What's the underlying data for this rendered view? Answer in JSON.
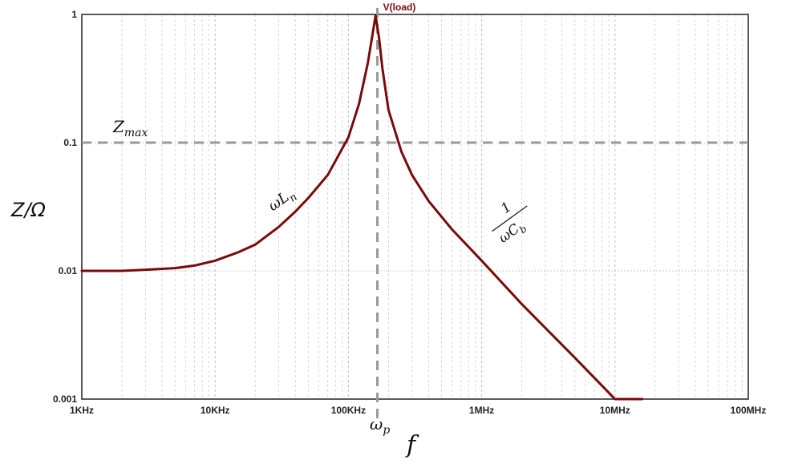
{
  "chart_data": {
    "type": "line",
    "title": "V(load)",
    "xlabel": "f",
    "ylabel": "Z/Ω",
    "x_scale": "log",
    "y_scale": "log",
    "xlim": [
      1000,
      100000000
    ],
    "ylim": [
      0.001,
      1
    ],
    "x_tick_labels": [
      "1KHz",
      "10KHz",
      "100KHz",
      "1MHz",
      "10MHz",
      "100MHz"
    ],
    "y_tick_labels": [
      "1",
      "0.1",
      "0.01",
      "0.001"
    ],
    "grid": true,
    "colors": {
      "series": "#7a0a0a",
      "reference": "#999999",
      "grid_major": "#bdbdbd",
      "grid_minor": "#cfcfcf"
    },
    "series": [
      {
        "x": [
          1000,
          2000,
          3000,
          5000,
          7000,
          10000,
          15000,
          20000,
          30000,
          40000,
          50000,
          70000,
          100000,
          120000,
          140000,
          150000,
          160000,
          170000,
          180000,
          200000,
          250000,
          300000,
          400000,
          600000,
          1000000,
          2000000,
          5000000,
          10000000,
          16000000
        ],
        "y": [
          0.01,
          0.01,
          0.0102,
          0.0105,
          0.011,
          0.012,
          0.014,
          0.016,
          0.022,
          0.029,
          0.037,
          0.056,
          0.11,
          0.2,
          0.42,
          0.65,
          0.98,
          0.65,
          0.38,
          0.18,
          0.085,
          0.056,
          0.035,
          0.021,
          0.012,
          0.0055,
          0.0021,
          0.001,
          0.001
        ]
      }
    ],
    "annotations": {
      "zmax_label": "Z_max",
      "zmax_value": 0.1,
      "wp_label": "ω_p",
      "wp_frequency": 165000,
      "inductive_label": "ωL_n",
      "capacitive_numerator": "1",
      "capacitive_denominator": "ωC_b"
    }
  }
}
